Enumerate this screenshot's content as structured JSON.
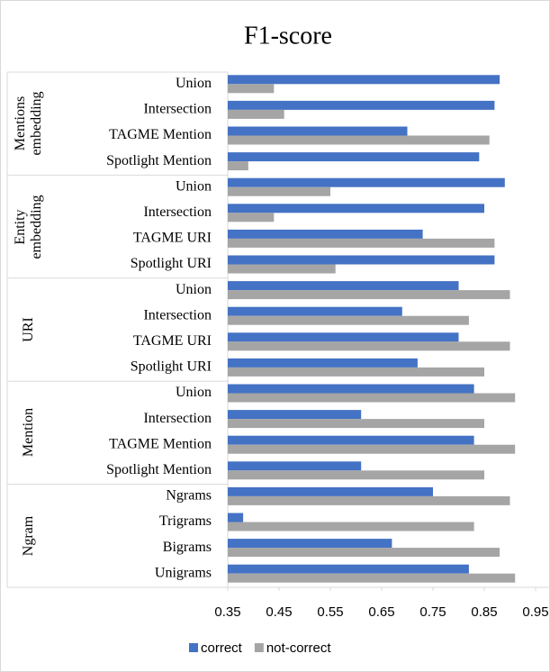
{
  "chart_data": {
    "type": "bar",
    "orientation": "horizontal",
    "title": "F1-score",
    "categories": [
      "Union",
      "Intersection",
      "TAGME Mention",
      "Spotlight Mention",
      "Union",
      "Intersection",
      "TAGME URI",
      "Spotlight URI",
      "Union",
      "Intersection",
      "TAGME URI",
      "Spotlight URI",
      "Union",
      "Intersection",
      "TAGME Mention",
      "Spotlight Mention",
      "Ngrams",
      "Trigrams",
      "Bigrams",
      "Unigrams"
    ],
    "groups": [
      {
        "name": "Mentions embedding",
        "size": 4
      },
      {
        "name": "Entity embedding",
        "size": 4
      },
      {
        "name": "URI",
        "size": 4
      },
      {
        "name": "Mention",
        "size": 4
      },
      {
        "name": "Ngram",
        "size": 4
      }
    ],
    "series": [
      {
        "name": "correct",
        "color": "#4472c4",
        "values": [
          0.88,
          0.87,
          0.7,
          0.84,
          0.89,
          0.85,
          0.73,
          0.87,
          0.8,
          0.69,
          0.8,
          0.72,
          0.83,
          0.61,
          0.83,
          0.61,
          0.75,
          0.38,
          0.67,
          0.82
        ]
      },
      {
        "name": "not-correct",
        "color": "#a5a5a5",
        "values": [
          0.44,
          0.46,
          0.86,
          0.39,
          0.55,
          0.44,
          0.87,
          0.56,
          0.9,
          0.82,
          0.9,
          0.85,
          0.91,
          0.85,
          0.91,
          0.85,
          0.9,
          0.83,
          0.88,
          0.91
        ]
      }
    ],
    "xlim": [
      0.35,
      0.95
    ],
    "xticks": [
      0.35,
      0.45,
      0.55,
      0.65,
      0.75,
      0.85,
      0.95
    ],
    "legend": "bottom"
  }
}
